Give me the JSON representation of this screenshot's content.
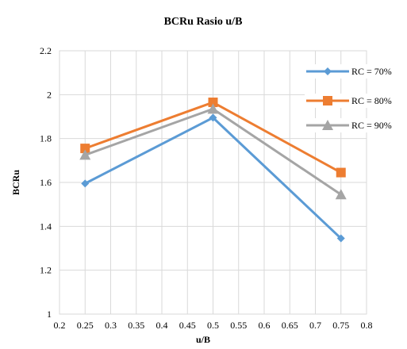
{
  "chart_data": {
    "type": "line",
    "title": "BCRu Rasio u/B",
    "xlabel": "u/B",
    "ylabel": "BCRu",
    "xlim": [
      0.2,
      0.8
    ],
    "ylim": [
      1,
      2.2
    ],
    "xticks": [
      0.2,
      0.25,
      0.3,
      0.35,
      0.4,
      0.45,
      0.5,
      0.55,
      0.6,
      0.65,
      0.7,
      0.75,
      0.8
    ],
    "xtick_labels": [
      "0.2",
      "0.25",
      "0.3",
      "0.35",
      "0.4",
      "0.45",
      "0.5",
      "0.55",
      "0.6",
      "0.65",
      "0.7",
      "0.75",
      "0.8"
    ],
    "yticks": [
      1,
      1.2,
      1.4,
      1.6,
      1.8,
      2,
      2.2
    ],
    "ytick_labels": [
      "1",
      "1.2",
      "1.4",
      "1.6",
      "1.8",
      "2",
      "2.2"
    ],
    "grid": true,
    "legend_position": "right",
    "x": [
      0.25,
      0.5,
      0.75
    ],
    "series": [
      {
        "name": "RC = 70%",
        "values": [
          1.595,
          1.895,
          1.345
        ],
        "color": "#5B9BD5",
        "marker": "diamond"
      },
      {
        "name": "RC = 80%",
        "values": [
          1.755,
          1.965,
          1.645
        ],
        "color": "#ED7D31",
        "marker": "square"
      },
      {
        "name": "RC = 90%",
        "values": [
          1.725,
          1.935,
          1.545
        ],
        "color": "#A5A5A5",
        "marker": "triangle"
      }
    ]
  }
}
